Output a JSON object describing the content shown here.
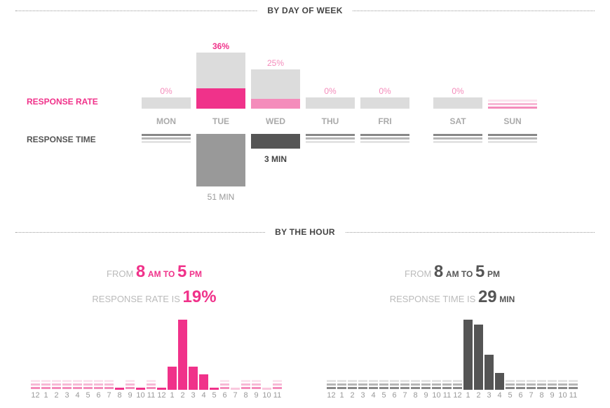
{
  "colors": {
    "pink": "#f0328a",
    "pink_light": "#f48cbb",
    "grey_bg": "#dcdcdc",
    "dark": "#555555",
    "mid_grey": "#999999"
  },
  "sections": {
    "day": "BY DAY OF WEEK",
    "hour": "BY THE HOUR"
  },
  "chart_data": [
    {
      "type": "bar",
      "title": "BY DAY OF WEEK",
      "row_labels": {
        "rate": "RESPONSE RATE",
        "time": "RESPONSE TIME"
      },
      "categories": [
        "MON",
        "TUE",
        "WED",
        "THU",
        "FRI",
        "SAT",
        "SUN"
      ],
      "response_rate": {
        "labels": [
          "0%",
          "36%",
          "25%",
          "0%",
          "0%",
          "0%",
          ""
        ],
        "values": [
          0,
          36,
          25,
          0,
          0,
          0,
          null
        ],
        "volume_relative": [
          0.2,
          1,
          0.7,
          0.2,
          0.2,
          0.2,
          null
        ]
      },
      "response_time": {
        "labels": [
          "",
          "51 MIN",
          "3 MIN",
          "",
          "",
          "",
          ""
        ],
        "values_min": [
          null,
          51,
          3,
          null,
          null,
          null,
          null
        ]
      }
    },
    {
      "type": "bar",
      "title": "BY THE HOUR",
      "series_name": "Response rate",
      "summary": {
        "from": "FROM",
        "start": "8",
        "start_unit": "AM TO",
        "end": "5",
        "end_unit": "PM",
        "label": "RESPONSE RATE IS",
        "value": "19%"
      },
      "categories": [
        "12",
        "1",
        "2",
        "3",
        "4",
        "5",
        "6",
        "7",
        "8",
        "9",
        "10",
        "11",
        "12",
        "1",
        "2",
        "3",
        "4",
        "5",
        "6",
        "7",
        "8",
        "9",
        "10",
        "11"
      ],
      "values": [
        null,
        null,
        null,
        null,
        null,
        null,
        null,
        null,
        0,
        null,
        0,
        null,
        0,
        33,
        100,
        33,
        22,
        0,
        null,
        "light",
        null,
        null,
        "light",
        null
      ]
    },
    {
      "type": "bar",
      "title": "BY THE HOUR",
      "series_name": "Response time",
      "summary": {
        "from": "FROM",
        "start": "8",
        "start_unit": "AM TO",
        "end": "5",
        "end_unit": "PM",
        "label": "RESPONSE TIME IS",
        "value": "29",
        "value_unit": "MIN"
      },
      "categories": [
        "12",
        "1",
        "2",
        "3",
        "4",
        "5",
        "6",
        "7",
        "8",
        "9",
        "10",
        "11",
        "12",
        "1",
        "2",
        "3",
        "4",
        "5",
        "6",
        "7",
        "8",
        "9",
        "10",
        "11"
      ],
      "values": [
        null,
        null,
        null,
        null,
        null,
        null,
        null,
        null,
        null,
        null,
        null,
        null,
        null,
        100,
        93,
        50,
        24,
        null,
        null,
        null,
        null,
        null,
        null,
        null
      ]
    }
  ]
}
